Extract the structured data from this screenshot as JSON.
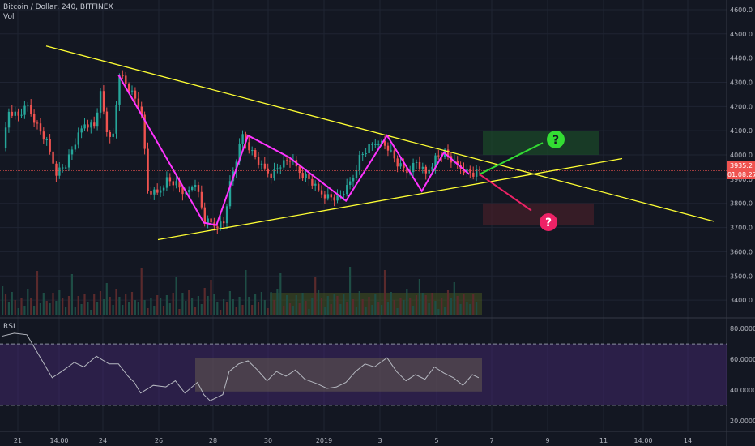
{
  "header": {
    "title": "Bitcoin / Dollar, 240, BITFINEX",
    "volume_label": "Vol"
  },
  "rsi_panel": {
    "label": "RSI",
    "levels": [
      80,
      60,
      40,
      20
    ],
    "upper_band": 70,
    "lower_band": 30
  },
  "price_tag": {
    "price": "3935.2",
    "countdown": "01:08:27"
  },
  "colors": {
    "background": "#131722",
    "up": "#26a69a",
    "down": "#ef5350",
    "trendline": "#ffff33",
    "pattern": "#ff33ff",
    "rsi_fill": "#4a2a78",
    "bull_arrow": "#33dd33",
    "bear_arrow": "#ee2266"
  },
  "annotations": {
    "bull_marker": "?",
    "bear_marker": "?"
  },
  "chart_data": {
    "type": "candlestick",
    "price_axis": {
      "min": 3330,
      "max": 4640,
      "ticks": [
        4600,
        4500,
        4400,
        4300,
        4200,
        4100,
        4000,
        3900,
        3800,
        3700,
        3600,
        3500,
        3400
      ]
    },
    "time_axis": {
      "ticks": [
        "21",
        "14:00",
        "24",
        "26",
        "28",
        "30",
        "2019",
        "3",
        "5",
        "7",
        "9",
        "11",
        "14:00",
        "14"
      ]
    },
    "rsi_axis": {
      "min": 13,
      "max": 87,
      "ticks": [
        "80.0000",
        "60.0000",
        "40.0000",
        "20.0000"
      ]
    },
    "close_path": [
      [
        0,
        4030
      ],
      [
        2,
        4180
      ],
      [
        5,
        4160
      ],
      [
        8,
        4200
      ],
      [
        11,
        4120
      ],
      [
        14,
        4050
      ],
      [
        17,
        3930
      ],
      [
        20,
        3960
      ],
      [
        23,
        4050
      ],
      [
        26,
        4130
      ],
      [
        29,
        4120
      ],
      [
        31,
        4250
      ],
      [
        33,
        4100
      ],
      [
        35,
        4080
      ],
      [
        37,
        4340
      ],
      [
        39,
        4290
      ],
      [
        41,
        4250
      ],
      [
        44,
        4180
      ],
      [
        46,
        3850
      ],
      [
        49,
        3840
      ],
      [
        52,
        3900
      ],
      [
        55,
        3880
      ],
      [
        58,
        3830
      ],
      [
        61,
        3890
      ],
      [
        64,
        3730
      ],
      [
        67,
        3710
      ],
      [
        70,
        3720
      ],
      [
        72,
        3880
      ],
      [
        74,
        3980
      ],
      [
        76,
        4080
      ],
      [
        79,
        4010
      ],
      [
        82,
        3950
      ],
      [
        85,
        3920
      ],
      [
        88,
        3960
      ],
      [
        91,
        3980
      ],
      [
        94,
        3930
      ],
      [
        97,
        3900
      ],
      [
        100,
        3850
      ],
      [
        103,
        3830
      ],
      [
        106,
        3820
      ],
      [
        109,
        3860
      ],
      [
        111,
        3910
      ],
      [
        113,
        3990
      ],
      [
        116,
        4030
      ],
      [
        119,
        4060
      ],
      [
        122,
        4030
      ],
      [
        125,
        3960
      ],
      [
        128,
        3930
      ],
      [
        131,
        3970
      ],
      [
        134,
        3920
      ],
      [
        137,
        3990
      ],
      [
        140,
        4010
      ],
      [
        143,
        3960
      ],
      [
        146,
        3940
      ],
      [
        149,
        3920
      ],
      [
        151,
        3935
      ]
    ],
    "pattern_zigzag": [
      [
        37,
        4330
      ],
      [
        64,
        3720
      ],
      [
        68,
        3710
      ],
      [
        78,
        4080
      ],
      [
        91,
        3990
      ],
      [
        109,
        3810
      ],
      [
        122,
        4080
      ],
      [
        133,
        3850
      ],
      [
        140,
        4010
      ],
      [
        148,
        3920
      ]
    ],
    "rsi_path": [
      [
        0,
        75
      ],
      [
        4,
        77
      ],
      [
        8,
        76
      ],
      [
        12,
        62
      ],
      [
        16,
        48
      ],
      [
        19,
        52
      ],
      [
        23,
        58
      ],
      [
        26,
        55
      ],
      [
        30,
        62
      ],
      [
        34,
        57
      ],
      [
        37,
        57
      ],
      [
        40,
        49
      ],
      [
        42,
        45
      ],
      [
        44,
        38
      ],
      [
        48,
        43
      ],
      [
        52,
        42
      ],
      [
        55,
        46
      ],
      [
        58,
        38
      ],
      [
        62,
        45
      ],
      [
        64,
        37
      ],
      [
        66,
        33
      ],
      [
        70,
        37
      ],
      [
        72,
        52
      ],
      [
        75,
        57
      ],
      [
        78,
        59
      ],
      [
        81,
        53
      ],
      [
        84,
        46
      ],
      [
        87,
        52
      ],
      [
        90,
        49
      ],
      [
        93,
        53
      ],
      [
        96,
        47
      ],
      [
        100,
        44
      ],
      [
        103,
        41
      ],
      [
        106,
        42
      ],
      [
        109,
        45
      ],
      [
        112,
        52
      ],
      [
        115,
        57
      ],
      [
        118,
        55
      ],
      [
        122,
        61
      ],
      [
        125,
        52
      ],
      [
        128,
        46
      ],
      [
        131,
        50
      ],
      [
        134,
        47
      ],
      [
        137,
        55
      ],
      [
        140,
        51
      ],
      [
        143,
        48
      ],
      [
        146,
        43
      ],
      [
        149,
        50
      ],
      [
        151,
        48
      ]
    ],
    "grid": true
  }
}
